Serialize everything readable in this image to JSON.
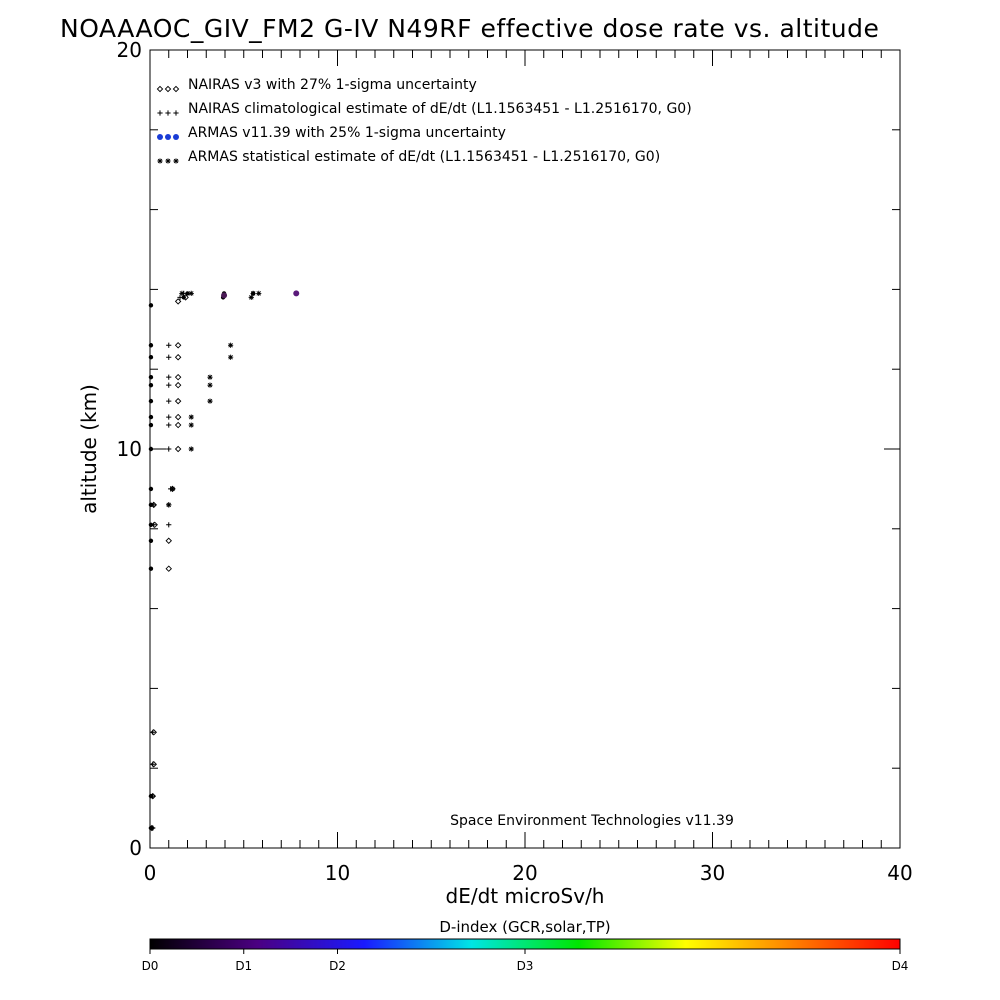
{
  "chart_data": {
    "type": "scatter",
    "title": "NOAAAOC_GIV_FM2 G-IV   N49RF  effective dose rate vs. altitude",
    "xlabel": "dE/dt microSv/h",
    "ylabel": "altitude (km)",
    "xlim": [
      0,
      40
    ],
    "ylim": [
      0,
      20
    ],
    "x_ticks": [
      "0",
      "10",
      "20",
      "30",
      "40"
    ],
    "y_ticks": [
      "0",
      "10",
      "20"
    ],
    "grid": false,
    "legend_position": "top-left",
    "credit": "Space Environment Technologies v11.39",
    "series": [
      {
        "name": "NAIRAS v3 with 27% 1-sigma uncertainty",
        "marker": "diamond",
        "color": "#000000",
        "points": [
          [
            0.1,
            0.5
          ],
          [
            0.15,
            1.3
          ],
          [
            0.2,
            2.1
          ],
          [
            0.2,
            2.9
          ],
          [
            1.0,
            7.0
          ],
          [
            1.0,
            7.7
          ],
          [
            0.25,
            8.1
          ],
          [
            0.2,
            8.6
          ],
          [
            1.2,
            9.0
          ],
          [
            1.5,
            10.0
          ],
          [
            1.5,
            10.6
          ],
          [
            1.5,
            10.8
          ],
          [
            1.5,
            11.2
          ],
          [
            1.5,
            11.6
          ],
          [
            1.5,
            11.8
          ],
          [
            1.5,
            12.3
          ],
          [
            1.5,
            12.6
          ],
          [
            1.5,
            13.7
          ],
          [
            1.9,
            13.8
          ]
        ]
      },
      {
        "name": "NAIRAS climatological estimate of dE/dt (L1.1563451 - L1.2516170, G0)",
        "marker": "plus",
        "color": "#000000",
        "points": [
          [
            0.15,
            0.5
          ],
          [
            0.15,
            1.3
          ],
          [
            0.15,
            2.1
          ],
          [
            0.15,
            2.9
          ],
          [
            0.2,
            8.1
          ],
          [
            0.2,
            8.6
          ],
          [
            1.0,
            8.1
          ],
          [
            1.0,
            8.6
          ],
          [
            1.1,
            9.0
          ],
          [
            1.0,
            10.0
          ],
          [
            1.0,
            10.6
          ],
          [
            1.0,
            10.8
          ],
          [
            1.0,
            11.2
          ],
          [
            1.0,
            11.6
          ],
          [
            1.0,
            11.8
          ],
          [
            1.0,
            12.3
          ],
          [
            1.0,
            12.6
          ],
          [
            1.6,
            13.8
          ],
          [
            1.8,
            13.9
          ]
        ]
      },
      {
        "name": "ARMAS v11.39 with 25% 1-sigma uncertainty",
        "marker": "circle",
        "color": "#000000",
        "legend_color": "#1a3cd6",
        "points": [
          [
            0.05,
            0.5
          ],
          [
            0.05,
            1.3
          ],
          [
            0.05,
            7.0
          ],
          [
            0.05,
            7.7
          ],
          [
            0.05,
            8.1
          ],
          [
            0.05,
            8.6
          ],
          [
            0.05,
            9.0
          ],
          [
            0.05,
            10.0
          ],
          [
            0.05,
            10.6
          ],
          [
            0.05,
            10.8
          ],
          [
            0.05,
            11.2
          ],
          [
            0.05,
            11.6
          ],
          [
            0.05,
            11.8
          ],
          [
            0.05,
            12.3
          ],
          [
            0.05,
            12.6
          ],
          [
            0.05,
            13.6
          ],
          [
            1.8,
            13.8
          ],
          [
            2.0,
            13.9
          ],
          [
            3.9,
            13.8
          ],
          [
            3.95,
            13.9
          ],
          [
            5.5,
            13.9
          ],
          [
            7.8,
            13.9
          ]
        ]
      },
      {
        "name": "ARMAS statistical estimate of dE/dt (L1.1563451 - L1.2516170, G0)",
        "marker": "asterisk",
        "color": "#000000",
        "points": [
          [
            1.0,
            8.6
          ],
          [
            1.2,
            9.0
          ],
          [
            2.2,
            10.0
          ],
          [
            2.2,
            10.6
          ],
          [
            2.2,
            10.8
          ],
          [
            3.2,
            11.2
          ],
          [
            3.2,
            11.6
          ],
          [
            3.2,
            11.8
          ],
          [
            4.3,
            12.3
          ],
          [
            4.3,
            12.6
          ],
          [
            1.7,
            13.9
          ],
          [
            2.2,
            13.9
          ],
          [
            5.4,
            13.8
          ],
          [
            5.5,
            13.9
          ],
          [
            5.8,
            13.9
          ]
        ]
      }
    ],
    "colorbar": {
      "title": "D-index (GCR,solar,TP)",
      "labels": [
        "D0",
        "D1",
        "D2",
        "D3",
        "D4"
      ],
      "label_values": [
        0,
        1,
        2,
        3,
        4
      ],
      "scale_max": 4,
      "label_fractions": [
        0,
        0.125,
        0.25,
        0.5,
        1
      ],
      "colors": [
        "#000000",
        "#4b0082",
        "#1a1aff",
        "#00e5e5",
        "#00e600",
        "#ffff00",
        "#ff8000",
        "#ff0000"
      ]
    },
    "special_points": [
      {
        "x": 3.95,
        "y": 13.85,
        "color": "#4a1a55"
      },
      {
        "x": 7.8,
        "y": 13.9,
        "color": "#5a1a7a"
      }
    ]
  }
}
